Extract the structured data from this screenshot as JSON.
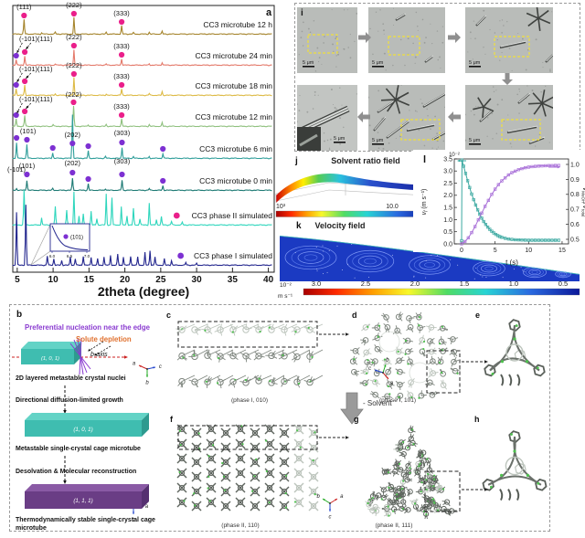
{
  "panel_a": {
    "label": "a",
    "xlabel": "2theta (degree)",
    "x_ticks": [
      "5",
      "10",
      "15",
      "20",
      "25",
      "30",
      "35",
      "40"
    ],
    "marker_colors": {
      "pink": "#ea1f8a",
      "purple": "#7d30d2"
    },
    "inset": {
      "label": "(101)",
      "ticks": [
        "6.0",
        "6.5",
        "7.0"
      ]
    },
    "traces": [
      {
        "name": "CC3 microtube 12 h",
        "color": "#a5842c",
        "base": 38,
        "peaks": [
          [
            5.95,
            16
          ],
          [
            8.4,
            1.5
          ],
          [
            10.3,
            2
          ],
          [
            12.9,
            18
          ],
          [
            17.4,
            2
          ],
          [
            19.55,
            9
          ],
          [
            21.2,
            1.5
          ],
          [
            23.4,
            2
          ],
          [
            25.2,
            3
          ]
        ],
        "markers": [
          [
            5.95,
            17,
            "pink"
          ],
          [
            12.9,
            15,
            "pink"
          ],
          [
            19.55,
            24,
            "pink"
          ]
        ],
        "labels": [
          {
            "text": "(111)",
            "t": 5.95,
            "y": 10
          },
          {
            "text": "(222)",
            "t": 12.9,
            "y": 8
          },
          {
            "text": "(333)",
            "t": 19.55,
            "y": 17
          }
        ]
      },
      {
        "name": "CC3 microtube 24 min",
        "color": "#e4796a",
        "base": 72,
        "peaks": [
          [
            4.85,
            6
          ],
          [
            6.05,
            10
          ],
          [
            10.3,
            1.5
          ],
          [
            12.9,
            17
          ],
          [
            17.4,
            1.5
          ],
          [
            19.55,
            7
          ],
          [
            23.4,
            1.5
          ],
          [
            25.2,
            3
          ]
        ],
        "markers": [
          [
            4.85,
            61,
            "purple"
          ],
          [
            6.05,
            57,
            "pink"
          ],
          [
            12.9,
            50,
            "pink"
          ],
          [
            19.55,
            60,
            "pink"
          ]
        ],
        "labels": [
          {
            "text": "(-101)(111)",
            "t": 7.6,
            "y": 45,
            "arrows": [
              [
                5.7,
                47,
                4.95,
                58
              ],
              [
                6.9,
                47,
                6.2,
                54
              ]
            ]
          },
          {
            "text": "(222)",
            "t": 12.9,
            "y": 43
          },
          {
            "text": "(333)",
            "t": 19.55,
            "y": 53
          }
        ]
      },
      {
        "name": "CC3 microtube 18 min",
        "color": "#ddba45",
        "base": 105,
        "peaks": [
          [
            4.85,
            7
          ],
          [
            6.05,
            11
          ],
          [
            10.3,
            1.5
          ],
          [
            12.9,
            20
          ],
          [
            17.4,
            1.5
          ],
          [
            19.55,
            7
          ],
          [
            23.4,
            2
          ],
          [
            25.2,
            4
          ]
        ],
        "markers": [
          [
            4.85,
            93,
            "purple"
          ],
          [
            6.05,
            89,
            "pink"
          ],
          [
            12.9,
            81,
            "pink"
          ],
          [
            19.55,
            93,
            "pink"
          ]
        ],
        "labels": [
          {
            "text": "(-101)(111)",
            "t": 7.6,
            "y": 78,
            "arrows": [
              [
                5.7,
                80,
                4.95,
                90
              ],
              [
                6.9,
                80,
                6.2,
                86
              ]
            ]
          },
          {
            "text": "(222)",
            "t": 12.9,
            "y": 74
          },
          {
            "text": "(333)",
            "t": 19.55,
            "y": 86
          }
        ]
      },
      {
        "name": "CC3 microtube 12 min",
        "color": "#8fc07e",
        "base": 139,
        "peaks": [
          [
            4.85,
            8
          ],
          [
            6.05,
            12
          ],
          [
            10.0,
            2
          ],
          [
            12.85,
            22
          ],
          [
            14.9,
            2
          ],
          [
            17.4,
            2
          ],
          [
            19.55,
            8
          ],
          [
            23.4,
            2
          ],
          [
            25.2,
            4
          ]
        ],
        "markers": [
          [
            4.85,
            126,
            "purple"
          ],
          [
            6.05,
            122,
            "pink"
          ],
          [
            12.85,
            112,
            "pink"
          ],
          [
            19.55,
            126,
            "pink"
          ]
        ],
        "labels": [
          {
            "text": "(-101)(111)",
            "t": 7.6,
            "y": 111,
            "arrows": [
              [
                5.7,
                113,
                4.95,
                124
              ],
              [
                6.9,
                113,
                6.2,
                119
              ]
            ]
          },
          {
            "text": "(222)",
            "t": 12.85,
            "y": 106
          },
          {
            "text": "(333)",
            "t": 19.55,
            "y": 119
          }
        ]
      },
      {
        "name": "CC3 microtube 6 min",
        "color": "#2f9e9a",
        "base": 174,
        "peaks": [
          [
            4.9,
            17
          ],
          [
            6.35,
            15
          ],
          [
            9.95,
            6
          ],
          [
            12.7,
            48
          ],
          [
            14.9,
            8
          ],
          [
            17.3,
            2
          ],
          [
            19.6,
            12
          ],
          [
            21.2,
            2
          ],
          [
            23.4,
            2
          ],
          [
            25.3,
            5
          ]
        ],
        "markers": [
          [
            4.9,
            151,
            "purple"
          ],
          [
            6.35,
            153,
            "purple"
          ],
          [
            9.95,
            162,
            "purple"
          ],
          [
            12.7,
            157,
            "purple"
          ],
          [
            14.9,
            160,
            "purple"
          ],
          [
            19.6,
            156,
            "purple"
          ],
          [
            25.3,
            163,
            "purple"
          ]
        ],
        "labels": [
          {
            "text": "(101)",
            "t": 6.5,
            "y": 146
          },
          {
            "text": "(202)",
            "t": 12.7,
            "y": 150
          },
          {
            "text": "(303)",
            "t": 19.6,
            "y": 148
          },
          {
            "text": "(-101)",
            "t": 4.9,
            "y": 188
          }
        ]
      },
      {
        "name": "CC3 microtube 0 min",
        "color": "#1d7a74",
        "base": 209,
        "peaks": [
          [
            4.9,
            2
          ],
          [
            6.35,
            11
          ],
          [
            9.95,
            2
          ],
          [
            12.7,
            13
          ],
          [
            14.9,
            7
          ],
          [
            17.3,
            2
          ],
          [
            19.6,
            11
          ],
          [
            23.4,
            2
          ],
          [
            25.3,
            5
          ]
        ],
        "markers": [
          [
            6.35,
            191,
            "purple"
          ],
          [
            12.7,
            189,
            "purple"
          ],
          [
            14.9,
            196,
            "purple"
          ],
          [
            19.6,
            191,
            "purple"
          ],
          [
            25.3,
            198,
            "purple"
          ]
        ],
        "labels": [
          {
            "text": "(101)",
            "t": 6.35,
            "y": 184
          },
          {
            "text": "(202)",
            "t": 12.7,
            "y": 181
          },
          {
            "text": "(303)",
            "t": 19.6,
            "y": 179
          }
        ]
      },
      {
        "name": "CC3 phase II simulated",
        "color": "#2fd6bd",
        "base": 247,
        "legend_dot": "pink",
        "peaks": [
          [
            5.95,
            38
          ],
          [
            8.4,
            8
          ],
          [
            10.3,
            20
          ],
          [
            11.9,
            16
          ],
          [
            12.9,
            36
          ],
          [
            13.6,
            10
          ],
          [
            14.2,
            12
          ],
          [
            15.3,
            15
          ],
          [
            16.1,
            7
          ],
          [
            17.4,
            34
          ],
          [
            18.2,
            30
          ],
          [
            19.5,
            20
          ],
          [
            20.3,
            10
          ],
          [
            21.2,
            18
          ],
          [
            22.1,
            7
          ],
          [
            23.4,
            24
          ],
          [
            24.4,
            6
          ],
          [
            25.1,
            9
          ],
          [
            26.5,
            4
          ],
          [
            28.0,
            3
          ]
        ]
      },
      {
        "name": "CC3 phase I simulated",
        "color": "#23268e",
        "base": 291,
        "legend_dot": "purple",
        "peaks": [
          [
            4.9,
            58
          ],
          [
            6.2,
            66
          ],
          [
            9.2,
            10
          ],
          [
            10.1,
            7
          ],
          [
            11.2,
            5
          ],
          [
            12.4,
            9
          ],
          [
            13.1,
            7
          ],
          [
            14.2,
            10
          ],
          [
            15.3,
            9
          ],
          [
            16.2,
            7
          ],
          [
            17.1,
            9
          ],
          [
            18.0,
            11
          ],
          [
            19.0,
            12
          ],
          [
            19.8,
            9
          ],
          [
            20.8,
            10
          ],
          [
            21.8,
            9
          ],
          [
            22.8,
            14
          ],
          [
            23.5,
            16
          ],
          [
            24.2,
            9
          ],
          [
            25.5,
            7
          ],
          [
            26.5,
            5
          ],
          [
            28.5,
            3
          ],
          [
            30.0,
            2
          ]
        ]
      }
    ]
  },
  "panel_i": {
    "label": "i",
    "scale_bar": "5 μm"
  },
  "panel_j": {
    "label": "j",
    "title": "Solvent ratio field",
    "cb_ticks": [
      "10³",
      "10.0",
      "1.0"
    ]
  },
  "panel_k": {
    "label": "k",
    "title": "Velocity field",
    "cb_ticks": [
      "3.0",
      "2.5",
      "2.0",
      "1.5",
      "1.0",
      "0.5"
    ],
    "unit_top": "10⁻²",
    "unit_bottom": "m s⁻¹"
  },
  "panel_l": {
    "label": "l",
    "xlabel": "t (s)",
    "x_ticks": [
      "0",
      "5",
      "10",
      "15"
    ],
    "y_left_ticks": [
      "0.0",
      "0.5",
      "1.0",
      "1.5",
      "2.0",
      "2.5",
      "3.0",
      "3.5"
    ],
    "y_right_ticks": [
      "0.5",
      "0.6",
      "0.7",
      "0.8",
      "0.9",
      "1.0"
    ],
    "scale_note": "10⁻²",
    "ylabel_left": {
      "base": "v",
      "sub": "f",
      "rest": " (m s⁻¹)"
    },
    "ylabel_right": {
      "base": "V",
      "sub": "MeOH",
      "mid": "/V",
      "sub2": "total"
    },
    "series": {
      "vf": {
        "color": "#3aa8a0",
        "points": [
          [
            0,
            0.13
          ],
          [
            0.05,
            3.45
          ],
          [
            0.3,
            3.2
          ],
          [
            0.6,
            2.9
          ],
          [
            0.9,
            2.6
          ],
          [
            1.2,
            2.32
          ],
          [
            1.5,
            2.05
          ],
          [
            1.8,
            1.82
          ],
          [
            2.1,
            1.6
          ],
          [
            2.4,
            1.4
          ],
          [
            2.7,
            1.22
          ],
          [
            3,
            1.06
          ],
          [
            3.3,
            0.92
          ],
          [
            3.6,
            0.8
          ],
          [
            3.9,
            0.69
          ],
          [
            4.2,
            0.6
          ],
          [
            4.5,
            0.52
          ],
          [
            4.8,
            0.45
          ],
          [
            5.1,
            0.39
          ],
          [
            5.4,
            0.34
          ],
          [
            5.7,
            0.3
          ],
          [
            6,
            0.27
          ],
          [
            6.5,
            0.23
          ],
          [
            7,
            0.2
          ],
          [
            7.5,
            0.185
          ],
          [
            8,
            0.17
          ],
          [
            8.5,
            0.165
          ],
          [
            9,
            0.16
          ],
          [
            9.5,
            0.155
          ],
          [
            10,
            0.15
          ],
          [
            10.5,
            0.15
          ],
          [
            11,
            0.15
          ],
          [
            11.5,
            0.15
          ],
          [
            12,
            0.15
          ],
          [
            12.5,
            0.15
          ],
          [
            13,
            0.15
          ],
          [
            13.5,
            0.15
          ],
          [
            14,
            0.15
          ],
          [
            14.5,
            0.15
          ]
        ]
      },
      "ratio": {
        "color": "#a86fd8",
        "points": [
          [
            0,
            0.47
          ],
          [
            0.5,
            0.485
          ],
          [
            1,
            0.51
          ],
          [
            1.5,
            0.545
          ],
          [
            2,
            0.585
          ],
          [
            2.5,
            0.63
          ],
          [
            3,
            0.675
          ],
          [
            3.5,
            0.72
          ],
          [
            4,
            0.76
          ],
          [
            4.5,
            0.8
          ],
          [
            5,
            0.835
          ],
          [
            5.5,
            0.865
          ],
          [
            6,
            0.89
          ],
          [
            6.5,
            0.91
          ],
          [
            7,
            0.93
          ],
          [
            7.5,
            0.945
          ],
          [
            8,
            0.955
          ],
          [
            8.5,
            0.965
          ],
          [
            9,
            0.972
          ],
          [
            9.5,
            0.978
          ],
          [
            10,
            0.982
          ],
          [
            10.5,
            0.985
          ],
          [
            11,
            0.987
          ],
          [
            11.5,
            0.989
          ],
          [
            12,
            0.99
          ],
          [
            12.5,
            0.991
          ],
          [
            13,
            0.992
          ],
          [
            13.5,
            0.992
          ],
          [
            14,
            0.993
          ],
          [
            14.5,
            0.993
          ]
        ]
      }
    }
  },
  "panel_b": {
    "label": "b",
    "heading": "Preferential nucleation near the edge",
    "heading_color": "#8a3bd0",
    "solute": "Solute depletion",
    "solute_color": "#e0712f",
    "axis_label": "b-axis",
    "box1_label": "(1, 0, 1)",
    "box1_caption": "2D layered metastable  crystal nuclei",
    "step1": "Directional diffusion-limited growth",
    "box2_label": "(1, 0, 1)",
    "box2_caption": "Metastable  single-crystal cage microtube",
    "step2": "Desolvation  &  Molecular reconstruction",
    "box3_label": "(1, 1, 1)",
    "box3_caption_line1": "Thermodynamically stable  single-crystal cage",
    "box3_caption_line2": "microtube",
    "teal_color": "#3fbdb0",
    "purple_color": "#6a3d85"
  },
  "structures": {
    "letters": {
      "c": "c",
      "d": "d",
      "e": "e",
      "f": "f",
      "g": "g",
      "h": "h"
    },
    "c_caption": "(phase I, 010)",
    "d_caption": "(phase I, 101)",
    "f_caption": "(phase II, 110)",
    "g_caption": "(phase II, 111)",
    "solvent_label": "- Solvent",
    "axis_letters": {
      "a": "a",
      "b": "b",
      "c": "c"
    }
  }
}
